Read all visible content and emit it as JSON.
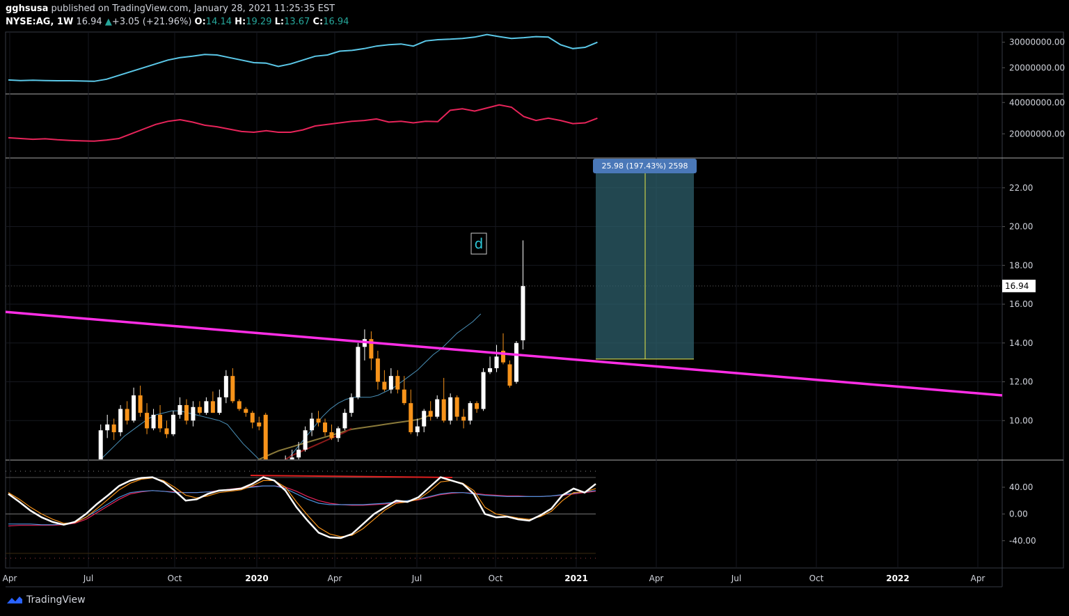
{
  "header": {
    "publisher": "gghsusa",
    "published_text": "published on TradingView.com, January 28, 2021 11:25:35 EST",
    "symbol": "NYSE:AG, 1W",
    "last": "16.94",
    "change": "+3.05 (+21.96%)",
    "open_label": "O:",
    "open": "14.14",
    "high_label": "H:",
    "high": "19.29",
    "low_label": "L:",
    "low": "13.67",
    "close_label": "C:",
    "close": "16.94"
  },
  "footer": {
    "brand": "TradingView"
  },
  "colors": {
    "background": "#000000",
    "up_candle": "#ffffff",
    "down_candle": "#f7931a",
    "trendline": "#ff2ee6",
    "vol_line_1": "#5bc8e8",
    "vol_line_2": "#e8245a",
    "measure_fill": "#2e5f6b",
    "measure_label": "#4a78b8"
  },
  "chart_data": [
    {
      "type": "line",
      "title": "Volume MA (upper pane)",
      "y_ticks": [
        "30000000.00",
        "20000000.00"
      ],
      "ylim": [
        10000000,
        34000000
      ],
      "series": [
        {
          "name": "vol-avg",
          "values": [
            15200000,
            15000000,
            15100000,
            15000000,
            14900000,
            14900000,
            14800000,
            14700000,
            15500000,
            17000000,
            18500000,
            20000000,
            21500000,
            23000000,
            24000000,
            24500000,
            25200000,
            25000000,
            24000000,
            23000000,
            22000000,
            21800000,
            20500000,
            21500000,
            23000000,
            24500000,
            25000000,
            26500000,
            26800000,
            27500000,
            28500000,
            29000000,
            29300000,
            28500000,
            30500000,
            31000000,
            31200000,
            31500000,
            32000000,
            33000000,
            32200000,
            31500000,
            31800000,
            32200000,
            32000000,
            29000000,
            27500000,
            28000000,
            30000000
          ]
        }
      ]
    },
    {
      "type": "line",
      "title": "Volume MA (second pane)",
      "y_ticks": [
        "40000000.00",
        "20000000.00"
      ],
      "ylim": [
        5000000,
        45000000
      ],
      "series": [
        {
          "name": "vol-avg-2",
          "values": [
            17500000,
            17000000,
            16500000,
            16800000,
            16200000,
            15800000,
            15500000,
            15300000,
            16000000,
            17000000,
            20000000,
            23000000,
            26000000,
            28000000,
            29000000,
            27500000,
            25500000,
            24500000,
            23000000,
            21500000,
            21000000,
            22000000,
            21000000,
            21000000,
            22500000,
            25000000,
            26000000,
            27000000,
            28000000,
            28500000,
            29500000,
            27500000,
            28000000,
            27000000,
            28000000,
            27800000,
            35000000,
            36000000,
            34500000,
            36500000,
            38500000,
            37000000,
            31000000,
            28500000,
            30000000,
            28500000,
            26500000,
            27000000,
            30000000
          ]
        }
      ]
    },
    {
      "type": "candlestick",
      "title": "NYSE:AG, 1W",
      "x_ticks": [
        "Apr",
        "Jul",
        "Oct",
        "2020",
        "Apr",
        "Jul",
        "Oct",
        "2021",
        "Apr",
        "Jul",
        "Oct",
        "2022",
        "Apr"
      ],
      "y_ticks": [
        "22.00",
        "20.00",
        "18.00",
        "16.00",
        "14.00",
        "12.00",
        "10.00"
      ],
      "ylim": [
        8.0,
        23.5
      ],
      "last_price": "16.94",
      "candles": [
        {
          "o": 7.4,
          "h": 9.8,
          "l": 7.0,
          "c": 9.5
        },
        {
          "o": 9.5,
          "h": 10.3,
          "l": 9.1,
          "c": 9.8
        },
        {
          "o": 9.8,
          "h": 10.1,
          "l": 9.0,
          "c": 9.4
        },
        {
          "o": 9.4,
          "h": 10.8,
          "l": 9.2,
          "c": 10.6
        },
        {
          "o": 10.6,
          "h": 11.0,
          "l": 9.8,
          "c": 10.0
        },
        {
          "o": 10.0,
          "h": 11.7,
          "l": 9.9,
          "c": 11.3
        },
        {
          "o": 11.3,
          "h": 11.8,
          "l": 10.2,
          "c": 10.4
        },
        {
          "o": 10.4,
          "h": 10.9,
          "l": 9.3,
          "c": 9.6
        },
        {
          "o": 9.6,
          "h": 10.6,
          "l": 9.5,
          "c": 10.3
        },
        {
          "o": 10.3,
          "h": 10.8,
          "l": 9.4,
          "c": 9.6
        },
        {
          "o": 9.6,
          "h": 10.0,
          "l": 9.1,
          "c": 9.3
        },
        {
          "o": 9.3,
          "h": 10.5,
          "l": 9.2,
          "c": 10.3
        },
        {
          "o": 10.3,
          "h": 11.2,
          "l": 10.1,
          "c": 10.8
        },
        {
          "o": 10.8,
          "h": 11.1,
          "l": 9.8,
          "c": 10.0
        },
        {
          "o": 10.0,
          "h": 11.0,
          "l": 9.7,
          "c": 10.7
        },
        {
          "o": 10.7,
          "h": 11.0,
          "l": 10.3,
          "c": 10.4
        },
        {
          "o": 10.4,
          "h": 11.2,
          "l": 10.3,
          "c": 11.0
        },
        {
          "o": 11.0,
          "h": 11.5,
          "l": 10.4,
          "c": 10.4
        },
        {
          "o": 10.4,
          "h": 11.6,
          "l": 10.3,
          "c": 11.2
        },
        {
          "o": 11.2,
          "h": 12.6,
          "l": 10.9,
          "c": 12.3
        },
        {
          "o": 12.3,
          "h": 12.7,
          "l": 10.9,
          "c": 11.0
        },
        {
          "o": 11.0,
          "h": 11.1,
          "l": 10.5,
          "c": 10.6
        },
        {
          "o": 10.6,
          "h": 10.7,
          "l": 10.2,
          "c": 10.4
        },
        {
          "o": 10.4,
          "h": 10.5,
          "l": 9.6,
          "c": 9.9
        },
        {
          "o": 9.9,
          "h": 10.2,
          "l": 9.5,
          "c": 9.7
        },
        {
          "o": 10.3,
          "h": 10.4,
          "l": 7.6,
          "c": 7.8
        },
        {
          "o": 7.8,
          "h": 8.0,
          "l": 6.5,
          "c": 6.8
        },
        {
          "o": 6.8,
          "h": 7.6,
          "l": 6.3,
          "c": 7.4
        },
        {
          "o": 7.4,
          "h": 8.2,
          "l": 7.2,
          "c": 8.0
        },
        {
          "o": 8.0,
          "h": 8.5,
          "l": 7.5,
          "c": 8.1
        },
        {
          "o": 8.1,
          "h": 8.9,
          "l": 7.8,
          "c": 8.5
        },
        {
          "o": 8.5,
          "h": 9.7,
          "l": 8.4,
          "c": 9.5
        },
        {
          "o": 9.5,
          "h": 10.4,
          "l": 9.2,
          "c": 10.1
        },
        {
          "o": 10.1,
          "h": 10.5,
          "l": 9.7,
          "c": 9.9
        },
        {
          "o": 9.9,
          "h": 10.1,
          "l": 9.2,
          "c": 9.4
        },
        {
          "o": 9.4,
          "h": 9.8,
          "l": 9.0,
          "c": 9.1
        },
        {
          "o": 9.1,
          "h": 9.7,
          "l": 8.9,
          "c": 9.6
        },
        {
          "o": 9.6,
          "h": 10.6,
          "l": 9.5,
          "c": 10.4
        },
        {
          "o": 10.4,
          "h": 11.4,
          "l": 10.2,
          "c": 11.2
        },
        {
          "o": 11.2,
          "h": 14.0,
          "l": 11.1,
          "c": 13.8
        },
        {
          "o": 13.8,
          "h": 14.7,
          "l": 13.1,
          "c": 14.2
        },
        {
          "o": 14.2,
          "h": 14.6,
          "l": 12.6,
          "c": 13.2
        },
        {
          "o": 13.2,
          "h": 13.6,
          "l": 11.6,
          "c": 12.0
        },
        {
          "o": 12.0,
          "h": 12.6,
          "l": 11.5,
          "c": 11.6
        },
        {
          "o": 11.6,
          "h": 12.7,
          "l": 11.4,
          "c": 12.3
        },
        {
          "o": 12.3,
          "h": 12.6,
          "l": 11.4,
          "c": 11.6
        },
        {
          "o": 11.6,
          "h": 12.3,
          "l": 10.8,
          "c": 10.9
        },
        {
          "o": 10.9,
          "h": 11.6,
          "l": 9.3,
          "c": 9.4
        },
        {
          "o": 9.4,
          "h": 10.1,
          "l": 9.2,
          "c": 9.7
        },
        {
          "o": 9.7,
          "h": 10.6,
          "l": 9.4,
          "c": 10.5
        },
        {
          "o": 10.5,
          "h": 11.0,
          "l": 10.0,
          "c": 10.2
        },
        {
          "o": 10.2,
          "h": 11.3,
          "l": 10.1,
          "c": 11.1
        },
        {
          "o": 11.1,
          "h": 12.2,
          "l": 9.9,
          "c": 10.0
        },
        {
          "o": 10.0,
          "h": 11.4,
          "l": 9.8,
          "c": 11.2
        },
        {
          "o": 11.2,
          "h": 11.3,
          "l": 10.0,
          "c": 10.2
        },
        {
          "o": 10.2,
          "h": 10.6,
          "l": 9.6,
          "c": 10.0
        },
        {
          "o": 10.0,
          "h": 11.0,
          "l": 9.8,
          "c": 10.9
        },
        {
          "o": 10.9,
          "h": 11.0,
          "l": 10.4,
          "c": 10.6
        },
        {
          "o": 10.6,
          "h": 12.7,
          "l": 10.5,
          "c": 12.5
        },
        {
          "o": 12.5,
          "h": 13.3,
          "l": 12.4,
          "c": 12.7
        },
        {
          "o": 12.7,
          "h": 13.9,
          "l": 12.5,
          "c": 13.3
        },
        {
          "o": 13.6,
          "h": 14.5,
          "l": 12.9,
          "c": 13.0
        },
        {
          "o": 12.9,
          "h": 13.1,
          "l": 11.7,
          "c": 11.8
        },
        {
          "o": 12.0,
          "h": 14.1,
          "l": 11.9,
          "c": 14.0
        },
        {
          "o": 14.14,
          "h": 19.29,
          "l": 13.67,
          "c": 16.94
        }
      ],
      "moving_averages": [
        {
          "name": "ma-short",
          "color": "#4a90b8",
          "values": [
            8.0,
            8.4,
            8.8,
            9.2,
            9.5,
            9.8,
            10.1,
            10.3,
            10.4,
            10.5,
            10.5,
            10.4,
            10.3,
            10.2,
            10.1,
            10.0,
            9.8,
            9.3,
            8.8,
            8.4,
            8.0,
            7.8,
            7.7,
            7.8,
            8.2,
            8.7,
            9.2,
            9.7,
            10.2,
            10.6,
            10.9,
            11.1,
            11.2,
            11.2,
            11.2,
            11.3,
            11.5,
            11.7,
            12.0,
            12.3,
            12.6,
            13.0,
            13.4,
            13.7,
            14.1,
            14.5,
            14.8,
            15.1,
            15.5
          ]
        },
        {
          "name": "ma-mid",
          "color": "#8a7a3a",
          "values": [
            7.0,
            7.2,
            7.4,
            7.6,
            7.8,
            8.0,
            8.15,
            8.3,
            8.45,
            8.55,
            8.65,
            8.75,
            8.85,
            8.95,
            9.05,
            9.15,
            9.25,
            9.35,
            9.45,
            9.55,
            9.6,
            9.65,
            9.7,
            9.75,
            9.8,
            9.85,
            9.9,
            9.95,
            10.0,
            10.05,
            10.15,
            10.3
          ]
        },
        {
          "name": "ma-long",
          "color": "#8b1a1a",
          "values": [
            7.0,
            7.2,
            7.4,
            7.6,
            7.8,
            8.0,
            8.2,
            8.35,
            8.5,
            8.65,
            8.8,
            8.95,
            9.1,
            9.25,
            9.4,
            9.6
          ]
        }
      ],
      "trendline": {
        "from_price": 15.6,
        "to_price": 11.3
      },
      "measure": {
        "label": "25.98 (197.43%) 2598",
        "from_price": 13.17,
        "to_price": 23.4
      }
    },
    {
      "type": "line",
      "title": "Oscillator",
      "y_ticks": [
        "40.00",
        "0.00",
        "-40.00"
      ],
      "ylim": [
        -60,
        65
      ],
      "series": [
        {
          "name": "fast",
          "color": "#ffffff",
          "values": [
            30,
            18,
            5,
            -5,
            -12,
            -16,
            -12,
            0,
            15,
            28,
            42,
            50,
            54,
            55,
            48,
            35,
            20,
            22,
            30,
            35,
            36,
            38,
            45,
            55,
            50,
            35,
            10,
            -10,
            -28,
            -35,
            -36,
            -30,
            -15,
            0,
            10,
            20,
            18,
            25,
            40,
            55,
            50,
            45,
            30,
            0,
            -5,
            -4,
            -8,
            -10,
            -2,
            8,
            28,
            38,
            32,
            45
          ]
        },
        {
          "name": "slow",
          "color": "#f7931a",
          "values": [
            32,
            22,
            10,
            0,
            -8,
            -14,
            -13,
            -5,
            8,
            22,
            36,
            46,
            52,
            54,
            50,
            40,
            28,
            24,
            27,
            32,
            34,
            36,
            42,
            50,
            50,
            40,
            18,
            -2,
            -20,
            -30,
            -34,
            -32,
            -22,
            -8,
            6,
            16,
            18,
            22,
            34,
            48,
            50,
            46,
            35,
            10,
            0,
            -3,
            -6,
            -8,
            -4,
            4,
            20,
            32,
            33,
            38
          ]
        },
        {
          "name": "avg-blue",
          "color": "#4a90d9",
          "values": [
            -15,
            -15,
            -15,
            -16,
            -16,
            -15,
            -12,
            -5,
            5,
            15,
            25,
            32,
            34,
            35,
            34,
            32,
            32,
            32,
            33,
            34,
            36,
            38,
            40,
            42,
            42,
            38,
            30,
            22,
            16,
            14,
            14,
            14,
            14,
            15,
            16,
            18,
            20,
            22,
            26,
            30,
            32,
            32,
            30,
            28,
            27,
            26,
            26,
            26,
            26,
            27,
            29,
            31,
            33,
            35
          ]
        },
        {
          "name": "avg-red",
          "color": "#e8245a",
          "values": [
            -18,
            -17,
            -17,
            -17,
            -17,
            -16,
            -14,
            -8,
            2,
            12,
            22,
            30,
            33,
            35,
            34,
            33,
            32,
            32,
            33,
            35,
            37,
            39,
            41,
            42,
            42,
            40,
            34,
            26,
            20,
            16,
            14,
            13,
            13,
            14,
            15,
            17,
            19,
            21,
            25,
            29,
            31,
            32,
            31,
            29,
            28,
            27,
            27,
            26,
            26,
            27,
            28,
            30,
            32,
            34
          ]
        }
      ]
    }
  ]
}
